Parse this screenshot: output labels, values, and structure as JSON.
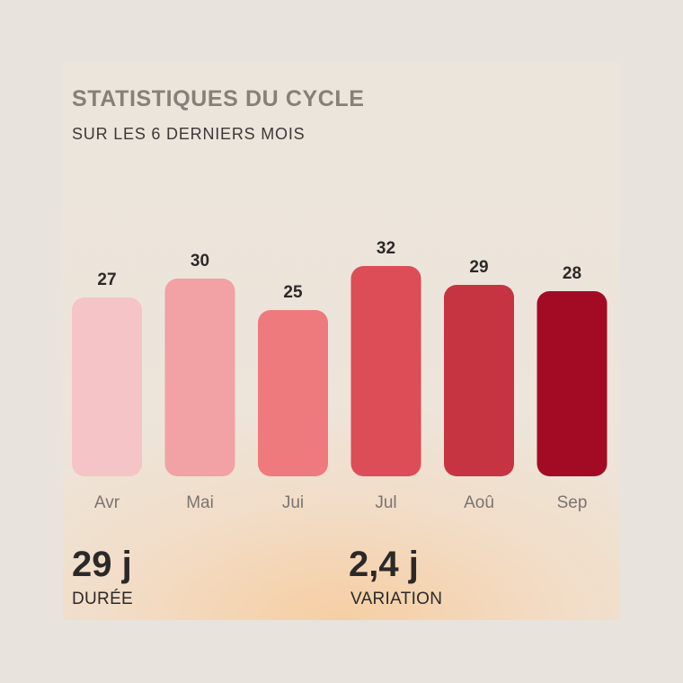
{
  "header": {
    "title": "STATISTIQUES DU CYCLE",
    "subtitle": "SUR LES 6 DERNIERS MOIS"
  },
  "chart_data": {
    "type": "bar",
    "categories": [
      "Avr",
      "Mai",
      "Jui",
      "Jul",
      "Aoû",
      "Sep"
    ],
    "values": [
      27,
      30,
      25,
      32,
      29,
      28
    ],
    "bar_colors": [
      "#f5c4c6",
      "#f2a1a4",
      "#ee7a7e",
      "#dc4d57",
      "#c73441",
      "#a30b24"
    ],
    "title": "STATISTIQUES DU CYCLE",
    "subtitle": "SUR LES 6 DERNIERS MOIS",
    "data_labels": true,
    "grid": false
  },
  "stats": {
    "duration_value": "29 j",
    "duration_label": "DURÉE",
    "variation_value": "2,4 j",
    "variation_label": "VARIATION"
  },
  "colors": {
    "background": "#e8e3dc",
    "title": "#878079",
    "text": "#2b2928",
    "axis_label": "#7a7470"
  }
}
